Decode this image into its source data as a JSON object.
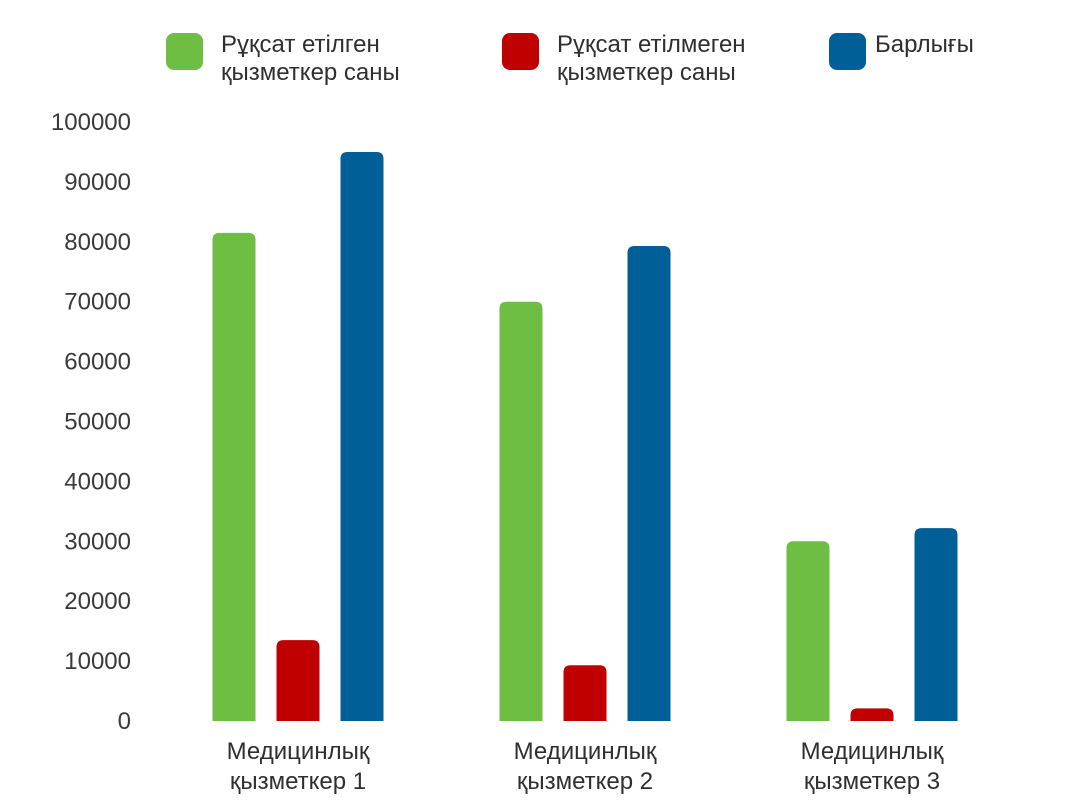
{
  "chart_data": {
    "type": "bar",
    "categories": [
      [
        "Медицинлық",
        "қызметкер 1"
      ],
      [
        "Медицинлық",
        "қызметкер 2"
      ],
      [
        "Медицинлық",
        "қызметкер 3"
      ]
    ],
    "series": [
      {
        "name": [
          "Рұқсат етілген",
          "қызметкер саны"
        ],
        "color": "#6fbe44",
        "values": [
          81500,
          70000,
          30000
        ]
      },
      {
        "name": [
          "Рұқсат етілмеген",
          "қызметкер саны"
        ],
        "color": "#c00000",
        "values": [
          13500,
          9300,
          2100
        ]
      },
      {
        "name": [
          "Барлығы"
        ],
        "color": "#005f96",
        "values": [
          95000,
          79300,
          32200
        ]
      }
    ],
    "yticks": [
      0,
      10000,
      20000,
      30000,
      40000,
      50000,
      60000,
      70000,
      80000,
      90000,
      100000
    ],
    "ylim": [
      0,
      100000
    ],
    "grid": false,
    "legend_position": "top",
    "title": "",
    "xlabel": "",
    "ylabel": ""
  }
}
